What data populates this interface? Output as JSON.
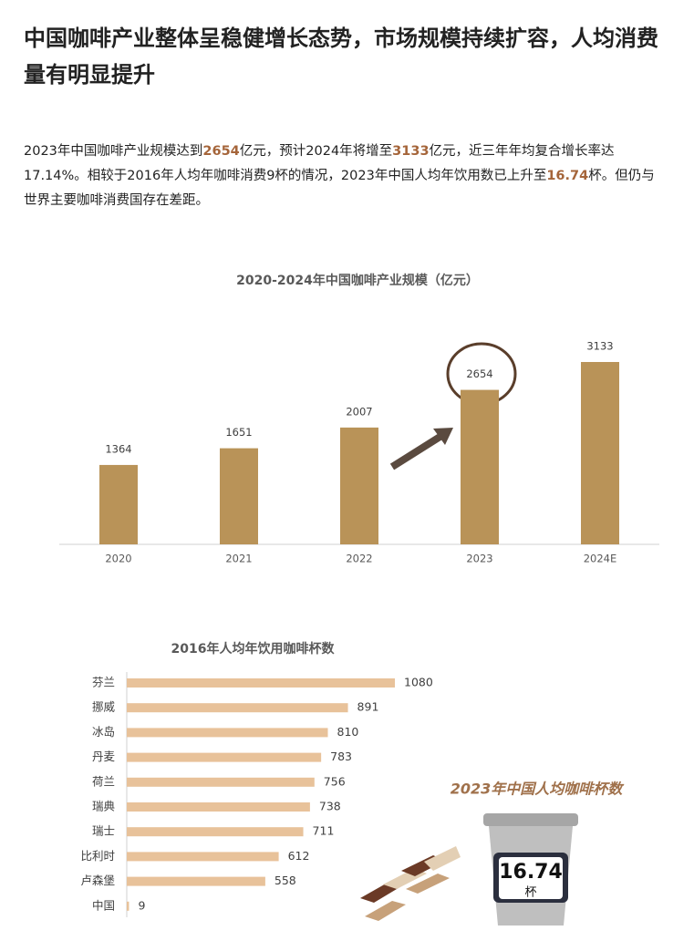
{
  "heading": "中国咖啡产业整体呈稳健增长态势，市场规模持续扩容，人均消费量有明显提升",
  "paragraph": [
    {
      "text": "2023年中国咖啡产业规模达到"
    },
    {
      "text": "2654",
      "bold": true
    },
    {
      "text": "亿元，预计2024年将增至"
    },
    {
      "text": "3133",
      "bold": true
    },
    {
      "text": "亿元，近三年年均复合增长率达17.14%。相较于2016年人均年咖啡消费9杯的情况，2023年中国人均年饮用数已上升至"
    },
    {
      "text": "16.74",
      "bold": true
    },
    {
      "text": "杯。但仍与世界主要咖啡消费国存在差距。"
    }
  ],
  "chart_data": [
    {
      "type": "bar",
      "title": "2020-2024年中国咖啡产业规模（亿元）",
      "categories": [
        "2020",
        "2021",
        "2022",
        "2023",
        "2024E"
      ],
      "values": [
        1364,
        1651,
        2007,
        2654,
        3133
      ],
      "color": "#b99358"
    },
    {
      "type": "barh",
      "title": "2016年人均年饮用咖啡杯数",
      "categories": [
        "芬兰",
        "挪威",
        "冰岛",
        "丹麦",
        "荷兰",
        "瑞典",
        "瑞士",
        "比利时",
        "卢森堡",
        "中国"
      ],
      "values": [
        1080,
        891,
        810,
        783,
        756,
        738,
        711,
        612,
        558,
        9
      ],
      "color": "#e8c29a"
    }
  ],
  "cup": {
    "title": "2023年中国人均咖啡杯数",
    "value": "16.74",
    "unit": "杯"
  }
}
